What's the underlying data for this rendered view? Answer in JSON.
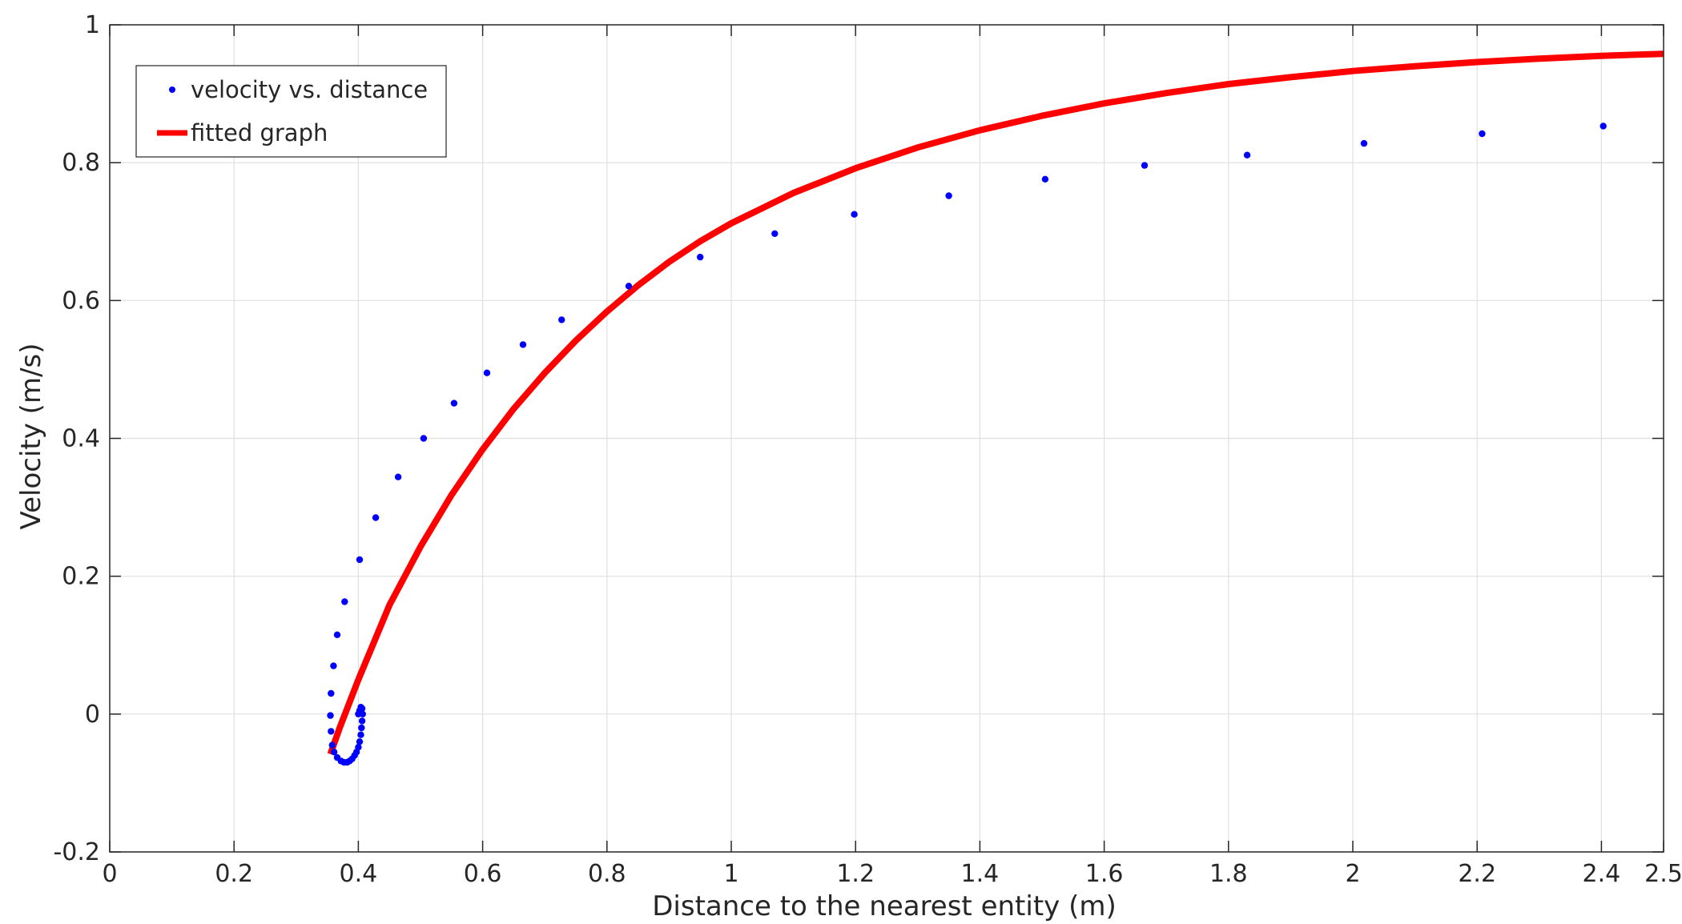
{
  "chart_data": {
    "type": "scatter",
    "title": "",
    "xlabel": "Distance to the nearest entity (m)",
    "ylabel": "Velocity (m/s)",
    "xlim": [
      0,
      2.5
    ],
    "ylim": [
      -0.2,
      1
    ],
    "grid": true,
    "legend_position": "top-left",
    "x_ticks": [
      0,
      0.2,
      0.4,
      0.6,
      0.8,
      1,
      1.2,
      1.4,
      1.6,
      1.8,
      2,
      2.2,
      2.4,
      2.5
    ],
    "x_tick_labels": [
      "0",
      "0.2",
      "0.4",
      "0.6",
      "0.8",
      "1",
      "1.2",
      "1.4",
      "1.6",
      "1.8",
      "2",
      "2.2",
      "2.4",
      "2.5"
    ],
    "y_ticks": [
      -0.2,
      0,
      0.2,
      0.4,
      0.6,
      0.8,
      1
    ],
    "y_tick_labels": [
      "-0.2",
      "0",
      "0.2",
      "0.4",
      "0.6",
      "0.8",
      "1"
    ],
    "series": [
      {
        "name": "velocity vs. distance",
        "type": "scatter",
        "color": "#0000ff",
        "x": [
          0.4,
          0.402,
          0.404,
          0.406,
          0.407,
          0.406,
          0.405,
          0.404,
          0.402,
          0.4,
          0.397,
          0.394,
          0.39,
          0.386,
          0.382,
          0.377,
          0.372,
          0.366,
          0.361,
          0.358,
          0.356,
          0.355,
          0.356,
          0.36,
          0.366,
          0.378,
          0.402,
          0.428,
          0.464,
          0.505,
          0.554,
          0.607,
          0.665,
          0.727,
          0.835,
          0.95,
          1.07,
          1.198,
          1.35,
          1.505,
          1.665,
          1.83,
          2.018,
          2.208,
          2.403
        ],
        "y": [
          0.0,
          0.005,
          0.01,
          0.008,
          0.0,
          -0.01,
          -0.02,
          -0.03,
          -0.04,
          -0.048,
          -0.055,
          -0.06,
          -0.065,
          -0.068,
          -0.07,
          -0.07,
          -0.068,
          -0.063,
          -0.055,
          -0.045,
          -0.025,
          -0.002,
          0.03,
          0.07,
          0.115,
          0.163,
          0.224,
          0.285,
          0.344,
          0.4,
          0.451,
          0.495,
          0.536,
          0.572,
          0.621,
          0.663,
          0.697,
          0.725,
          0.752,
          0.776,
          0.796,
          0.811,
          0.828,
          0.842,
          0.853
        ]
      },
      {
        "name": "fitted graph",
        "type": "line",
        "color": "#ff0000",
        "x": [
          0.355,
          0.37,
          0.4,
          0.45,
          0.5,
          0.55,
          0.6,
          0.65,
          0.7,
          0.75,
          0.8,
          0.85,
          0.9,
          0.95,
          1.0,
          1.1,
          1.2,
          1.3,
          1.4,
          1.5,
          1.6,
          1.7,
          1.8,
          1.9,
          2.0,
          2.1,
          2.2,
          2.3,
          2.4,
          2.5
        ],
        "y": [
          -0.058,
          -0.02,
          0.05,
          0.158,
          0.243,
          0.318,
          0.384,
          0.443,
          0.495,
          0.542,
          0.584,
          0.622,
          0.656,
          0.686,
          0.712,
          0.756,
          0.792,
          0.822,
          0.847,
          0.868,
          0.886,
          0.901,
          0.914,
          0.924,
          0.933,
          0.94,
          0.946,
          0.951,
          0.955,
          0.958
        ]
      }
    ]
  }
}
